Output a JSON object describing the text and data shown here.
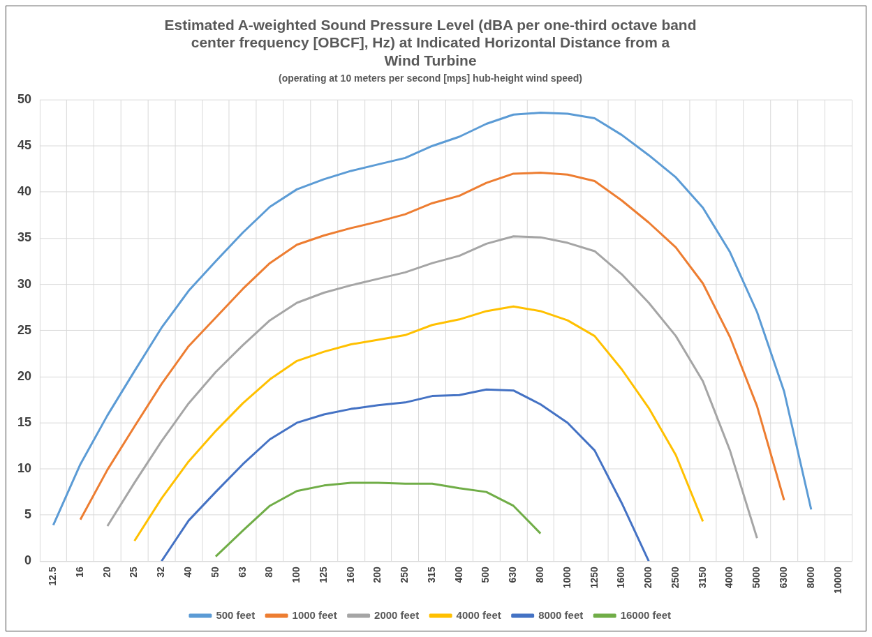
{
  "chart_data": {
    "type": "line",
    "title": [
      "Estimated A-weighted Sound Pressure Level (dBA per one-third octave band",
      "center frequency [OBCF], Hz) at Indicated Horizontal Distance from a",
      "Wind Turbine"
    ],
    "subtitle": "(operating at 10 meters per second [mps] hub-height wind speed)",
    "categories": [
      "12.5",
      "16",
      "20",
      "25",
      "32",
      "40",
      "50",
      "63",
      "80",
      "100",
      "125",
      "160",
      "200",
      "250",
      "315",
      "400",
      "500",
      "630",
      "800",
      "1000",
      "1250",
      "1600",
      "2000",
      "2500",
      "3150",
      "4000",
      "5000",
      "6300",
      "8000",
      "10000"
    ],
    "series": [
      {
        "name": "500 feet",
        "color": "#5b9bd5",
        "values": [
          3.9,
          10.5,
          15.8,
          20.6,
          25.3,
          29.3,
          32.5,
          35.6,
          38.4,
          40.3,
          41.4,
          42.3,
          43.0,
          43.7,
          45.0,
          46.0,
          47.4,
          48.4,
          48.6,
          48.5,
          48.0,
          46.2,
          44.0,
          41.6,
          38.3,
          33.5,
          27.0,
          18.4,
          5.6,
          null
        ]
      },
      {
        "name": "1000 feet",
        "color": "#ed7d31",
        "values": [
          null,
          4.5,
          9.9,
          14.6,
          19.2,
          23.3,
          26.4,
          29.5,
          32.3,
          34.3,
          35.3,
          36.1,
          36.8,
          37.6,
          38.8,
          39.6,
          41.0,
          42.0,
          42.1,
          41.9,
          41.2,
          39.1,
          36.7,
          34.0,
          30.1,
          24.3,
          16.8,
          6.6,
          null,
          null
        ]
      },
      {
        "name": "2000 feet",
        "color": "#a5a5a5",
        "values": [
          null,
          null,
          3.8,
          8.5,
          13.0,
          17.1,
          20.5,
          23.4,
          26.1,
          28.0,
          29.1,
          29.9,
          30.6,
          31.3,
          32.3,
          33.1,
          34.4,
          35.2,
          35.1,
          34.5,
          33.6,
          31.1,
          28.0,
          24.4,
          19.5,
          12.0,
          2.5,
          null,
          null,
          null
        ]
      },
      {
        "name": "4000 feet",
        "color": "#ffc000",
        "values": [
          null,
          null,
          null,
          2.2,
          6.8,
          10.8,
          14.1,
          17.1,
          19.7,
          21.7,
          22.7,
          23.5,
          24.0,
          24.5,
          25.6,
          26.2,
          27.1,
          27.6,
          27.1,
          26.1,
          24.4,
          20.8,
          16.6,
          11.5,
          4.3,
          null,
          null,
          null,
          null,
          null
        ]
      },
      {
        "name": "8000 feet",
        "color": "#4472c4",
        "values": [
          null,
          null,
          null,
          null,
          0.0,
          4.4,
          7.5,
          10.5,
          13.2,
          15.0,
          15.9,
          16.5,
          16.9,
          17.2,
          17.9,
          18.0,
          18.6,
          18.5,
          17.0,
          15.0,
          12.0,
          6.3,
          0.0,
          null,
          null,
          null,
          null,
          null,
          null,
          null
        ]
      },
      {
        "name": "16000 feet",
        "color": "#70ad47",
        "values": [
          null,
          null,
          null,
          null,
          null,
          null,
          0.5,
          3.3,
          6.0,
          7.6,
          8.2,
          8.5,
          8.5,
          8.4,
          8.4,
          7.9,
          7.5,
          6.0,
          3.0,
          null,
          null,
          null,
          null,
          null,
          null,
          null,
          null,
          null,
          null,
          null
        ]
      }
    ],
    "ylim": [
      0,
      50
    ],
    "yticks": [
      0,
      5,
      10,
      15,
      20,
      25,
      30,
      35,
      40,
      45,
      50
    ],
    "grid": true,
    "legend": "bottom",
    "marker": "none",
    "line_style": "solid"
  }
}
